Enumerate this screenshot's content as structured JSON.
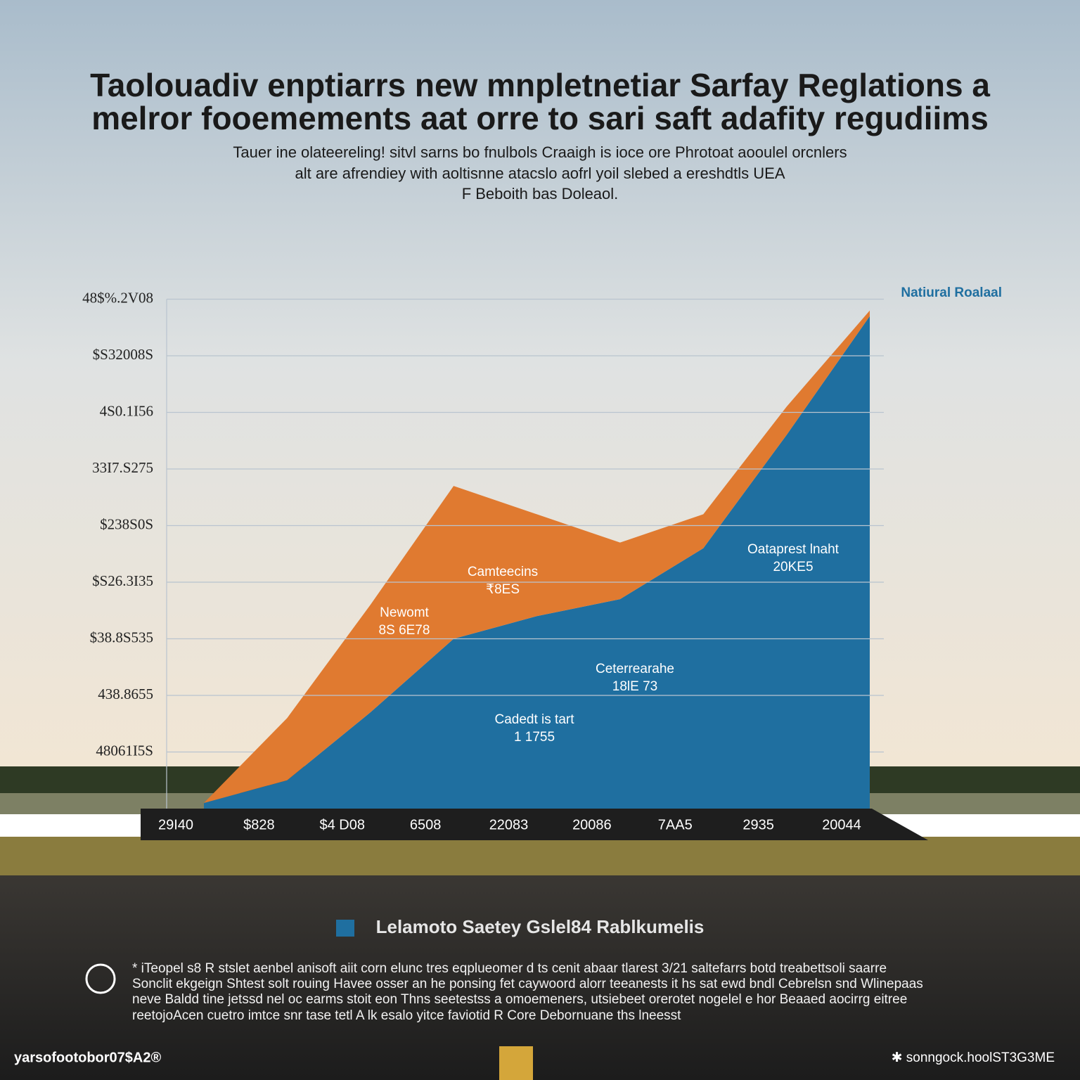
{
  "chart_data": {
    "type": "stacked-area",
    "title": [
      "Taolouadiv enptiarrs new mnpletnetiar Sarfay Reglations a",
      "melror fooemements aat orre to sari saft adafity regudiims"
    ],
    "subtitle": [
      "Tauer ine olateereling! sitvl sarns bo fnulbols Craaigh is ioce ore Phrotoat aooulel orcnlers",
      "alt are afrendiey with aoltisnne atacslo aofrl yoil slebed a ereshdtls UEA",
      "F Beboith bas Doleaol."
    ],
    "categories": [
      "29I40",
      "$828",
      "$4 D08",
      "6508",
      "22083",
      "20086",
      "7AA5",
      "2935",
      "20044"
    ],
    "series": [
      {
        "name": "Natiural Roalaal",
        "color": "#1f6fa0",
        "values": [
          0.1,
          0.5,
          1.7,
          3.0,
          3.4,
          3.7,
          4.6,
          6.6,
          8.7
        ]
      },
      {
        "color": "#e07a30",
        "values": [
          0,
          1.1,
          1.9,
          2.7,
          1.8,
          1.0,
          0.6,
          0.5,
          0.1
        ]
      }
    ],
    "ylim": [
      0,
      9
    ],
    "yticks": [
      {
        "value": 1,
        "label": "48061I5S"
      },
      {
        "value": 2,
        "label": "438.8655"
      },
      {
        "value": 3,
        "label": "$38.8S535"
      },
      {
        "value": 4,
        "label": "$S26.3I35"
      },
      {
        "value": 5,
        "label": "$238S0S"
      },
      {
        "value": 6,
        "label": "33I7.S275"
      },
      {
        "value": 7,
        "label": "4S0.1I56"
      },
      {
        "value": 8,
        "label": "$S32008S"
      },
      {
        "value": 9,
        "label": "48$%.2V08"
      }
    ],
    "grid": true,
    "annotations": [
      [
        "Newomt",
        "8S 6E78"
      ],
      [
        "Camteecins",
        "₹8ES"
      ],
      [
        "Ceterrearahe",
        "18lE 73"
      ],
      [
        "Cadedt is tart",
        "1 1755"
      ],
      [
        "Oataprest lnaht",
        "20KE5"
      ]
    ]
  },
  "caption": "Lelamoto Saetey Gslel84 Rablkumelis",
  "paragraph": [
    "* iTeopel s8 R stslet aenbel anisoft aiit corn elunc tres eqplueomer d ts cenit abaar tlarest 3/21 saltefarrs botd  treabettsoli saarre",
    "Sonclit ekgeign Shtest solt rouing Havee osser an he ponsing fet caywoord alorr teeanests it hs sat ewd bndl Cebrelsn snd Wlinepaas",
    "neve Baldd tine jetssd nel oc earms stoit eon Thns seetestss a omoemeners, utsiebeet orerotet nogelel e hor Beaaed aocirrg eitree",
    "reetojoAcen cuetro imtce snr tase tetl A lk esalo yitce faviotid R Core Debornuane ths lneesst"
  ],
  "footer": {
    "left": "yarsofootobor07$A2®",
    "right": "✱ sonngock.hoolST3G3ME"
  }
}
